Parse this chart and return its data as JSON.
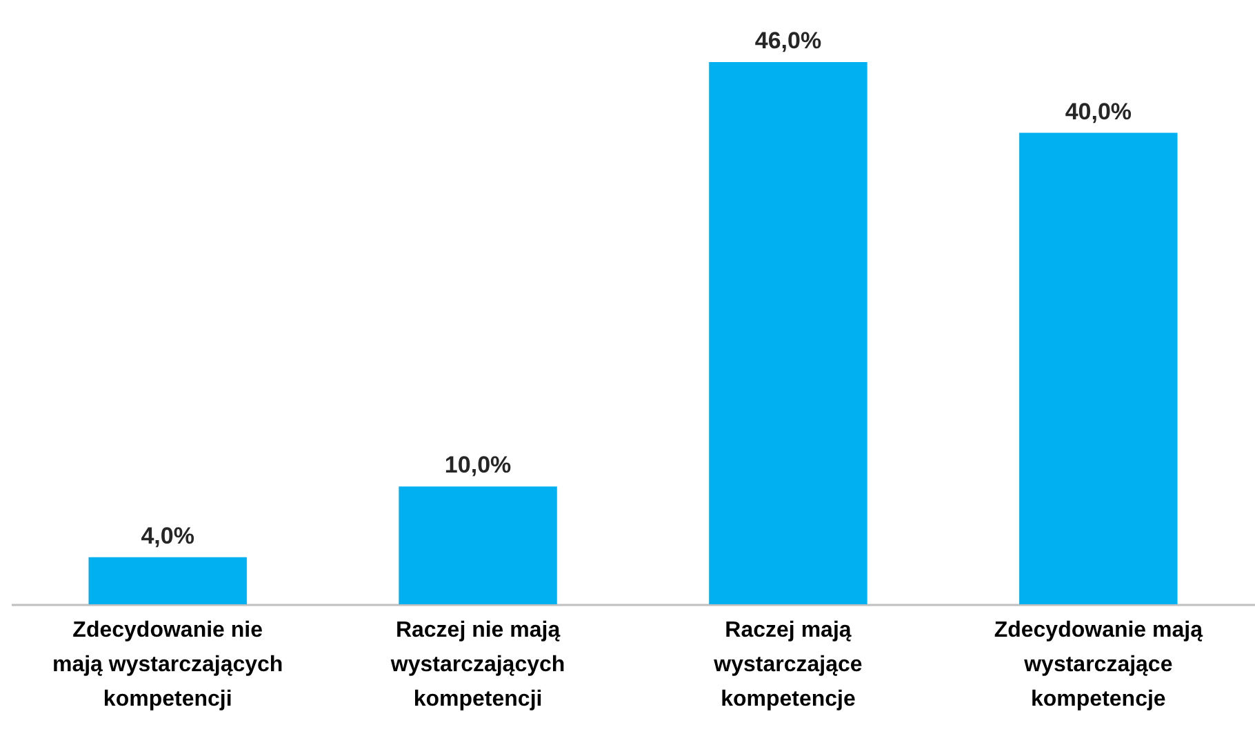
{
  "chart_data": {
    "type": "bar",
    "categories": [
      "Zdecydowanie nie mają wystarczających kompetencji",
      "Raczej nie mają wystarczających kompetencji",
      "Raczej mają wystarczające kompetencje",
      "Zdecydowanie mają wystarczające kompetencje"
    ],
    "values": [
      4,
      10,
      46,
      40
    ],
    "value_labels": [
      "4,0%",
      "10,0%",
      "46,0%",
      "40,0%"
    ],
    "color": "#00b0f0"
  }
}
